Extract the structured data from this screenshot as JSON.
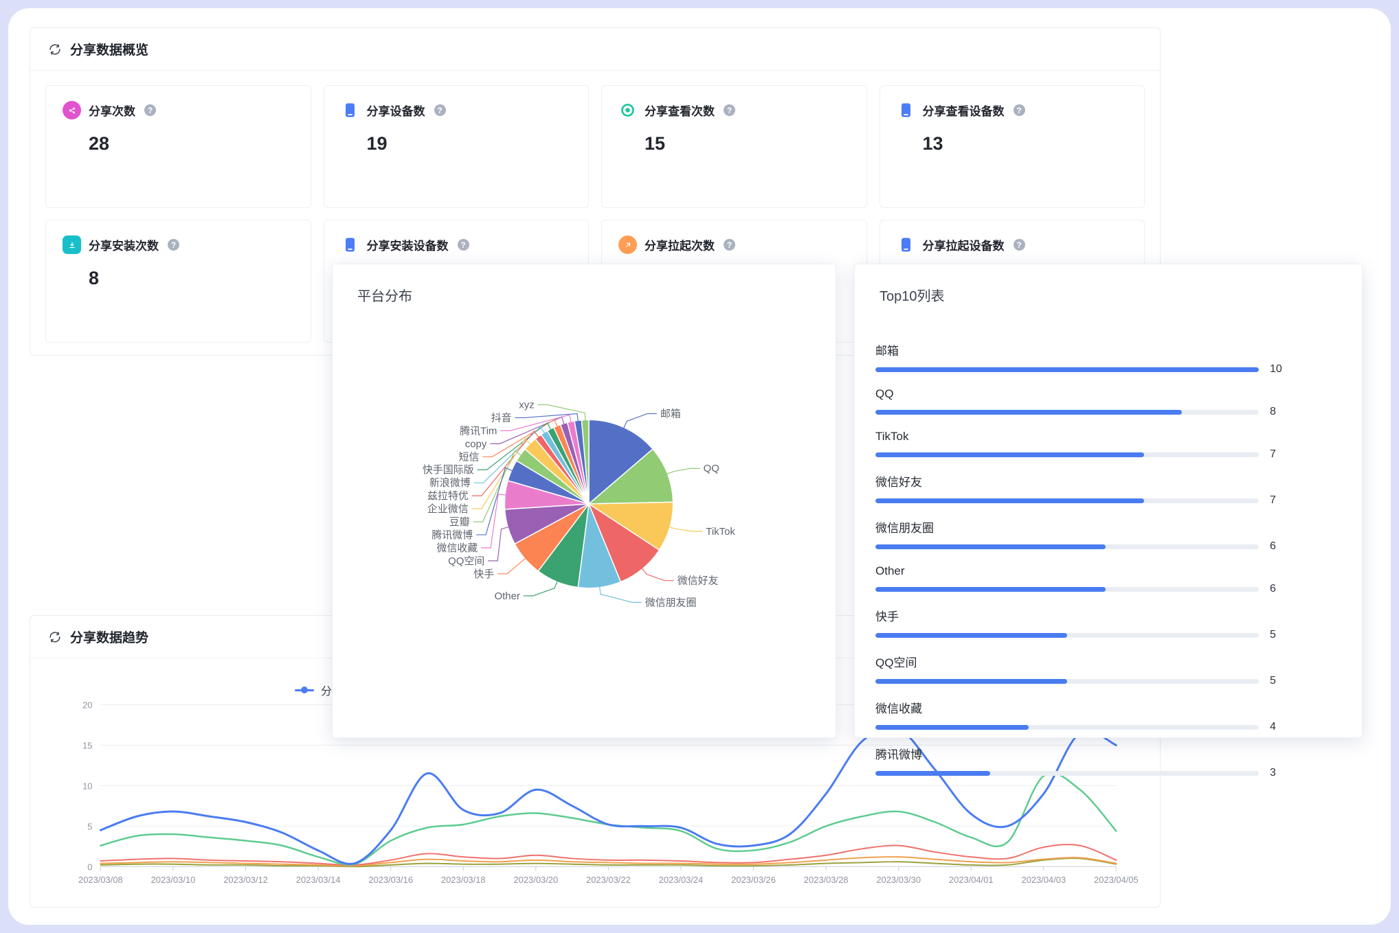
{
  "page": {
    "background": "#dbe0f8"
  },
  "icons": {
    "help": "?"
  },
  "overview": {
    "title": "分享数据概览",
    "cards": [
      {
        "label": "分享次数",
        "value": "28",
        "icon": "share-count-icon",
        "shape": "circle",
        "color": "#e253cf"
      },
      {
        "label": "分享设备数",
        "value": "19",
        "icon": "share-device-icon",
        "shape": "bare",
        "color": "#4d7cf6"
      },
      {
        "label": "分享查看次数",
        "value": "15",
        "icon": "share-view-icon",
        "shape": "bare",
        "color": "#13c79b"
      },
      {
        "label": "分享查看设备数",
        "value": "13",
        "icon": "share-device-icon",
        "shape": "bare",
        "color": "#4d7cf6"
      },
      {
        "label": "分享安装次数",
        "value": "8",
        "icon": "share-install-icon",
        "shape": "square",
        "color": "#18bfca"
      },
      {
        "label": "分享安装设备数",
        "value": "",
        "icon": "share-device-icon",
        "shape": "bare",
        "color": "#4d7cf6"
      },
      {
        "label": "分享拉起次数",
        "value": "",
        "icon": "share-launch-icon",
        "shape": "circle",
        "color": "#ff9d55"
      },
      {
        "label": "分享拉起设备数",
        "value": "",
        "icon": "share-device-icon",
        "shape": "bare",
        "color": "#4d7cf6"
      }
    ]
  },
  "platform": {
    "title": "平台分布"
  },
  "top10": {
    "title": "Top10列表"
  },
  "trend": {
    "title": "分享数据趋势"
  },
  "chart_data": [
    {
      "type": "pie",
      "title": "平台分布",
      "labels": [
        "邮箱",
        "QQ",
        "TikTok",
        "微信好友",
        "微信朋友圈",
        "Other",
        "快手",
        "QQ空间",
        "微信收藏",
        "腾讯微博",
        "豆瓣",
        "企业微信",
        "兹拉特优",
        "新浪微博",
        "快手国际版",
        "短信",
        "copy",
        "腾讯Tim",
        "抖音",
        "xyz"
      ],
      "values": [
        10,
        8,
        7,
        7,
        6,
        6,
        5,
        5,
        4,
        3,
        2,
        2,
        1,
        1,
        1,
        1,
        1,
        1,
        1,
        1
      ],
      "palette": [
        "#5470c6",
        "#91cc75",
        "#fac858",
        "#ee6666",
        "#73c0de",
        "#3ba272",
        "#fc8452",
        "#9a60b4",
        "#ea7ccc"
      ],
      "legend_position": "none"
    },
    {
      "type": "bar",
      "title": "Top10列表",
      "categories": [
        "邮箱",
        "QQ",
        "TikTok",
        "微信好友",
        "微信朋友圈",
        "Other",
        "快手",
        "QQ空间",
        "微信收藏",
        "腾讯微博"
      ],
      "values": [
        10,
        8,
        7,
        7,
        6,
        6,
        5,
        5,
        4,
        3
      ],
      "xlim": [
        0,
        10
      ],
      "bar_color": "#4a7cf0",
      "track_color": "#e9edf3"
    },
    {
      "type": "line",
      "title": "分享数据趋势",
      "x_tick_labels": [
        "2023/03/08",
        "2023/03/10",
        "2023/03/12",
        "2023/03/14",
        "2023/03/16",
        "2023/03/18",
        "2023/03/20",
        "2023/03/22",
        "2023/03/24",
        "2023/03/26",
        "2023/03/28",
        "2023/03/30",
        "2023/04/01",
        "2023/04/03",
        "2023/04/05"
      ],
      "points_per_tick": 2,
      "ylim": [
        0,
        20
      ],
      "yticks": [
        0,
        5,
        10,
        15,
        20
      ],
      "grid": true,
      "legend_position": "top",
      "series": [
        {
          "name": "分享次数",
          "color": "#4a7cf0",
          "width": 3,
          "values": [
            4.5,
            6.2,
            6.8,
            6.2,
            5.5,
            4.2,
            2,
            0.4,
            4.5,
            11.5,
            7,
            6.6,
            9.5,
            7.5,
            5.2,
            5,
            4.8,
            2.8,
            2.6,
            4,
            9,
            15.5,
            17,
            12,
            6.5,
            5,
            9,
            16.5,
            15
          ]
        },
        {
          "name": "",
          "color": "#5ecb8e",
          "width": 2.5,
          "values": [
            2.6,
            3.8,
            4,
            3.6,
            3.2,
            2.6,
            1.2,
            0.3,
            3.2,
            4.8,
            5.2,
            6.2,
            6.6,
            6,
            5.2,
            4.8,
            4.4,
            2.2,
            2,
            3,
            5,
            6.2,
            6.8,
            5.5,
            3.6,
            3,
            11.2,
            9.5,
            4.4
          ]
        },
        {
          "name": "",
          "color": "#f0716c",
          "width": 2,
          "values": [
            0.7,
            0.9,
            1,
            0.8,
            0.7,
            0.6,
            0.4,
            0.2,
            0.8,
            1.6,
            1.2,
            1,
            1.4,
            1,
            0.8,
            0.8,
            0.7,
            0.5,
            0.5,
            0.9,
            1.4,
            2.2,
            2.6,
            1.8,
            1.2,
            1,
            2.4,
            2.6,
            0.8
          ]
        },
        {
          "name": "",
          "color": "#f0a04b",
          "width": 2,
          "values": [
            0.4,
            0.5,
            0.6,
            0.5,
            0.4,
            0.3,
            0.2,
            0.1,
            0.5,
            0.9,
            0.7,
            0.6,
            0.8,
            0.6,
            0.5,
            0.4,
            0.4,
            0.3,
            0.3,
            0.5,
            0.8,
            1.1,
            1.2,
            0.9,
            0.6,
            0.5,
            0.9,
            1.1,
            0.4
          ]
        },
        {
          "name": "",
          "color": "#9aa23c",
          "width": 2,
          "values": [
            0.2,
            0.3,
            0.3,
            0.2,
            0.2,
            0.1,
            0.1,
            0,
            0.2,
            0.4,
            0.3,
            0.3,
            0.4,
            0.3,
            0.2,
            0.2,
            0.2,
            0.1,
            0.1,
            0.2,
            0.4,
            0.5,
            0.6,
            0.4,
            0.2,
            0.2,
            0.8,
            1,
            0.3
          ]
        }
      ]
    }
  ]
}
